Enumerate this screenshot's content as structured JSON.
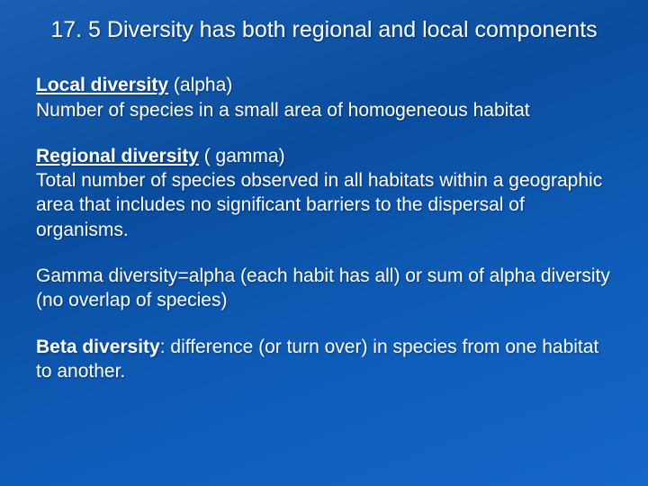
{
  "colors": {
    "background_gradient_start": "#1a5fb4",
    "background_gradient_mid1": "#0a4d9e",
    "background_gradient_mid2": "#0e5cb8",
    "background_gradient_end": "#1466c8",
    "text_color": "#ffffff",
    "shadow": "rgba(0,0,0,0.4)"
  },
  "typography": {
    "family": "Verdana",
    "title_fontsize": 25,
    "body_fontsize": 21,
    "line_height": 1.3
  },
  "title": "17. 5 Diversity has both regional and local components",
  "p1": {
    "lead": "Local diversity",
    "paren": " (alpha)",
    "body": "Number of species in a small area of homogeneous habitat"
  },
  "p2": {
    "lead": "Regional diversity",
    "paren": " ( gamma)",
    "body": "Total number of species observed in all habitats within a geographic area that includes no significant barriers to the dispersal of organisms."
  },
  "p3": {
    "body": "Gamma diversity=alpha (each habit has all) or sum of alpha diversity (no overlap of species)"
  },
  "p4": {
    "lead": "Beta diversity",
    "body": ": difference (or turn over) in species from one habitat to another."
  }
}
